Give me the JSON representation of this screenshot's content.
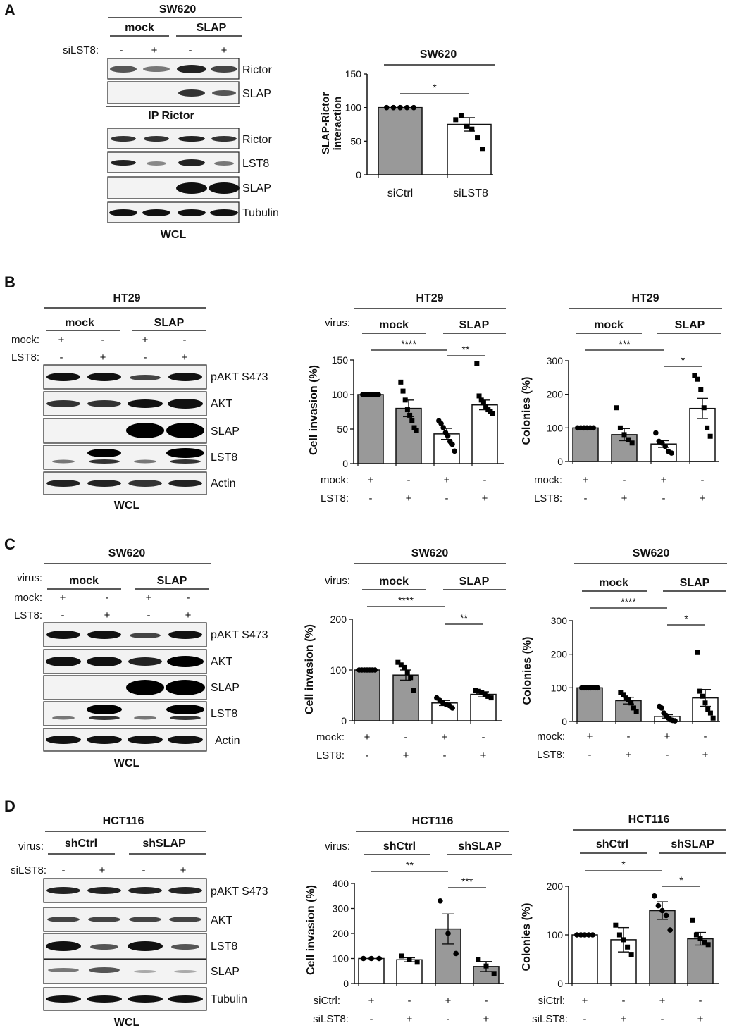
{
  "panelA": {
    "letter": "A",
    "blot": {
      "cell": "SW620",
      "groups": [
        "mock",
        "SLAP"
      ],
      "row_label": "siLST8:",
      "signs": [
        "-",
        "+",
        "-",
        "+"
      ],
      "ip_labels": [
        "Rictor",
        "SLAP"
      ],
      "ip_caption": "IP Rictor",
      "wcl_labels": [
        "Rictor",
        "LST8",
        "SLAP",
        "Tubulin"
      ],
      "wcl_caption": "WCL"
    },
    "chart": {
      "title": "SW620",
      "ylabel": "SLAP-Rictor interaction",
      "ylabel_lines": [
        "SLAP-Rictor",
        "interaction"
      ],
      "yticks": [
        "0",
        "50",
        "100",
        "150"
      ],
      "ylim": [
        0,
        150
      ],
      "categories": [
        "siCtrl",
        "siLST8"
      ],
      "significance": [
        "*"
      ]
    }
  },
  "panelB": {
    "letter": "B",
    "blot": {
      "cell": "HT29",
      "groups": [
        "mock",
        "SLAP"
      ],
      "rows": [
        {
          "label": "mock:",
          "signs": [
            "+",
            "-",
            "+",
            "-"
          ]
        },
        {
          "label": "LST8:",
          "signs": [
            "-",
            "+",
            "-",
            "+"
          ]
        }
      ],
      "labels": [
        "pAKT S473",
        "AKT",
        "SLAP",
        "LST8",
        "Actin"
      ],
      "caption": "WCL"
    },
    "invasion": {
      "title": "HT29",
      "virus_label": "virus:",
      "groups": [
        "mock",
        "SLAP"
      ],
      "ylabel": "Cell invasion (%)",
      "yticks": [
        "0",
        "50",
        "100",
        "150"
      ],
      "ylim": [
        0,
        150
      ],
      "significance": [
        "****",
        "**"
      ],
      "rows": [
        {
          "label": "mock:",
          "signs": [
            "+",
            "-",
            "+",
            "-"
          ]
        },
        {
          "label": "LST8:",
          "signs": [
            "-",
            "+",
            "-",
            "+"
          ]
        }
      ]
    },
    "colonies": {
      "title": "HT29",
      "groups": [
        "mock",
        "SLAP"
      ],
      "ylabel": "Colonies (%)",
      "yticks": [
        "0",
        "100",
        "200",
        "300"
      ],
      "ylim": [
        0,
        300
      ],
      "significance": [
        "***",
        "*"
      ],
      "rows": [
        {
          "label": "mock:",
          "signs": [
            "+",
            "-",
            "+",
            "-"
          ]
        },
        {
          "label": "LST8:",
          "signs": [
            "-",
            "+",
            "-",
            "+"
          ]
        }
      ]
    }
  },
  "panelC": {
    "letter": "C",
    "blot": {
      "cell": "SW620",
      "virus_label": "virus:",
      "groups": [
        "mock",
        "SLAP"
      ],
      "rows": [
        {
          "label": "mock:",
          "signs": [
            "+",
            "-",
            "+",
            "-"
          ]
        },
        {
          "label": "LST8:",
          "signs": [
            "-",
            "+",
            "-",
            "+"
          ]
        }
      ],
      "labels": [
        "pAKT S473",
        "AKT",
        "SLAP",
        "LST8",
        "Actin"
      ],
      "caption": "WCL"
    },
    "invasion": {
      "title": "SW620",
      "virus_label": "virus:",
      "groups": [
        "mock",
        "SLAP"
      ],
      "ylabel": "Cell invasion (%)",
      "yticks": [
        "0",
        "100",
        "200"
      ],
      "ylim": [
        0,
        200
      ],
      "significance": [
        "****",
        "**"
      ],
      "rows": [
        {
          "label": "mock:",
          "signs": [
            "+",
            "-",
            "+",
            "-"
          ]
        },
        {
          "label": "LST8:",
          "signs": [
            "-",
            "+",
            "-",
            "+"
          ]
        }
      ]
    },
    "colonies": {
      "title": "SW620",
      "groups": [
        "mock",
        "SLAP"
      ],
      "ylabel": "Colonies (%)",
      "yticks": [
        "0",
        "100",
        "200",
        "300"
      ],
      "ylim": [
        0,
        300
      ],
      "significance": [
        "****",
        "*"
      ],
      "rows": [
        {
          "label": "mock:",
          "signs": [
            "+",
            "-",
            "+",
            "-"
          ]
        },
        {
          "label": "LST8:",
          "signs": [
            "-",
            "+",
            "-",
            "+"
          ]
        }
      ]
    }
  },
  "panelD": {
    "letter": "D",
    "blot": {
      "cell": "HCT116",
      "virus_label": "virus:",
      "groups": [
        "shCtrl",
        "shSLAP"
      ],
      "rows": [
        {
          "label": "siLST8:",
          "signs": [
            "-",
            "+",
            "-",
            "+"
          ]
        }
      ],
      "labels": [
        "pAKT S473",
        "AKT",
        "LST8",
        "SLAP",
        "Tubulin"
      ],
      "caption": "WCL"
    },
    "invasion": {
      "title": "HCT116",
      "virus_label": "virus:",
      "groups": [
        "shCtrl",
        "shSLAP"
      ],
      "ylabel": "Cell invasion (%)",
      "yticks": [
        "0",
        "100",
        "200",
        "300",
        "400"
      ],
      "ylim": [
        0,
        400
      ],
      "significance": [
        "**",
        "***"
      ],
      "rows": [
        {
          "label": "siCtrl:",
          "signs": [
            "+",
            "-",
            "+",
            "-"
          ]
        },
        {
          "label": "siLST8:",
          "signs": [
            "-",
            "+",
            "-",
            "+"
          ]
        }
      ]
    },
    "colonies": {
      "title": "HCT116",
      "groups": [
        "shCtrl",
        "shSLAP"
      ],
      "ylabel": "Colonies (%)",
      "yticks": [
        "0",
        "100",
        "200"
      ],
      "ylim": [
        0,
        200
      ],
      "significance": [
        "*",
        "*"
      ],
      "rows": [
        {
          "label": "siCtrl:",
          "signs": [
            "+",
            "-",
            "+",
            "-"
          ]
        },
        {
          "label": "siLST8:",
          "signs": [
            "-",
            "+",
            "-",
            "+"
          ]
        }
      ]
    }
  },
  "chart_data": [
    {
      "id": "A",
      "type": "bar",
      "ylim": [
        0,
        150
      ],
      "categories": [
        "siCtrl",
        "siLST8"
      ],
      "fills": [
        "#999999",
        "#ffffff"
      ],
      "values": [
        100,
        75
      ],
      "errors": [
        0,
        10
      ],
      "points": [
        [
          100,
          100,
          100,
          100,
          100
        ],
        [
          82,
          88,
          72,
          68,
          55,
          38
        ]
      ]
    },
    {
      "id": "B-invasion",
      "type": "bar",
      "ylim": [
        0,
        150
      ],
      "fills": [
        "#999999",
        "#999999",
        "#ffffff",
        "#ffffff"
      ],
      "values": [
        100,
        80,
        43,
        85
      ],
      "errors": [
        0,
        12,
        8,
        7
      ],
      "points": [
        [
          100,
          100,
          100,
          100,
          100,
          100,
          100,
          100
        ],
        [
          118,
          105,
          92,
          78,
          70,
          62,
          52,
          48
        ],
        [
          62,
          58,
          52,
          45,
          40,
          32,
          28,
          18
        ],
        [
          145,
          98,
          92,
          88,
          82,
          78,
          75,
          72
        ]
      ]
    },
    {
      "id": "B-colonies",
      "type": "bar",
      "ylim": [
        0,
        300
      ],
      "fills": [
        "#999999",
        "#999999",
        "#ffffff",
        "#ffffff"
      ],
      "values": [
        100,
        80,
        52,
        158
      ],
      "errors": [
        0,
        18,
        10,
        30
      ],
      "points": [
        [
          100,
          100,
          100,
          100,
          100,
          100
        ],
        [
          160,
          100,
          80,
          65,
          55
        ],
        [
          85,
          60,
          55,
          45,
          30,
          25
        ],
        [
          255,
          245,
          215,
          160,
          100,
          75
        ]
      ]
    },
    {
      "id": "C-invasion",
      "type": "bar",
      "ylim": [
        0,
        200
      ],
      "fills": [
        "#999999",
        "#999999",
        "#ffffff",
        "#ffffff"
      ],
      "values": [
        100,
        90,
        35,
        52
      ],
      "errors": [
        0,
        10,
        5,
        5
      ],
      "points": [
        [
          100,
          100,
          100,
          100,
          100,
          100,
          100
        ],
        [
          115,
          110,
          105,
          95,
          85,
          60
        ],
        [
          45,
          40,
          35,
          32,
          30,
          25
        ],
        [
          60,
          58,
          55,
          52,
          48,
          45
        ]
      ]
    },
    {
      "id": "C-colonies",
      "type": "bar",
      "ylim": [
        0,
        300
      ],
      "fills": [
        "#999999",
        "#999999",
        "#ffffff",
        "#ffffff"
      ],
      "values": [
        100,
        62,
        15,
        70
      ],
      "errors": [
        0,
        10,
        5,
        25
      ],
      "points": [
        [
          100,
          100,
          100,
          100,
          100,
          100,
          100,
          100
        ],
        [
          85,
          80,
          70,
          65,
          55,
          40,
          30
        ],
        [
          45,
          40,
          25,
          18,
          10,
          5,
          3,
          2
        ],
        [
          205,
          90,
          75,
          55,
          35,
          25,
          10
        ]
      ]
    },
    {
      "id": "D-invasion",
      "type": "bar",
      "ylim": [
        0,
        400
      ],
      "fills": [
        "#ffffff",
        "#ffffff",
        "#999999",
        "#999999"
      ],
      "values": [
        100,
        95,
        218,
        68
      ],
      "errors": [
        0,
        8,
        60,
        20
      ],
      "points": [
        [
          100,
          100,
          100
        ],
        [
          110,
          95,
          85
        ],
        [
          330,
          200,
          120
        ],
        [
          95,
          70,
          40
        ]
      ]
    },
    {
      "id": "D-colonies",
      "type": "bar",
      "ylim": [
        0,
        200
      ],
      "fills": [
        "#ffffff",
        "#ffffff",
        "#999999",
        "#999999"
      ],
      "values": [
        100,
        90,
        150,
        92
      ],
      "errors": [
        0,
        25,
        18,
        13
      ],
      "points": [
        [
          100,
          100,
          100,
          100,
          100
        ],
        [
          120,
          100,
          90,
          75,
          60
        ],
        [
          180,
          160,
          150,
          140,
          110
        ],
        [
          130,
          100,
          92,
          85,
          80
        ]
      ]
    }
  ]
}
